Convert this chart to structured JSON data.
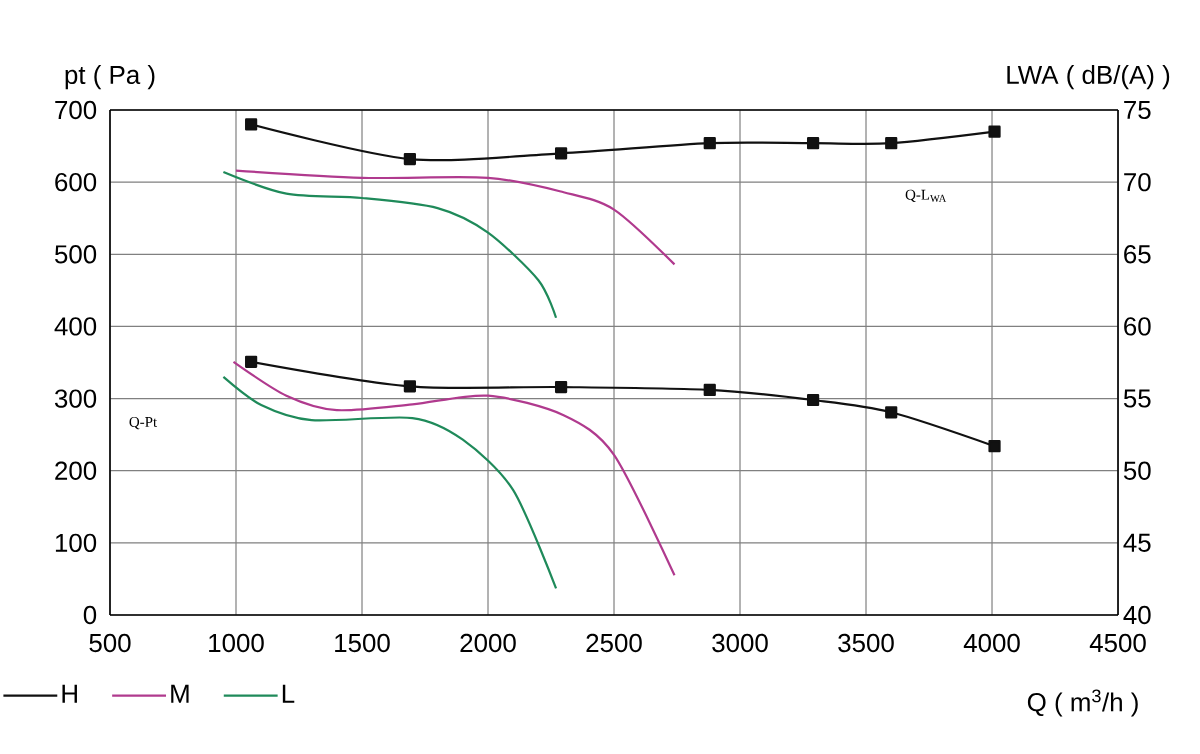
{
  "chart_data": {
    "type": "line",
    "xlabel": "Q ( m$^{3}$/h )",
    "ylabel": "pt ( Pa )",
    "y2label": "LWA ( dB/(A) )",
    "annotations": [
      "Q-Pt",
      "Q-L$_{WA}$"
    ],
    "xlim": [
      500,
      4500
    ],
    "xticks": [
      500,
      1000,
      1500,
      2000,
      2500,
      3000,
      3500,
      4000,
      4500
    ],
    "ylim": [
      0,
      700
    ],
    "yticks": [
      0,
      100,
      200,
      300,
      400,
      500,
      600,
      700
    ],
    "y2lim": [
      40,
      75
    ],
    "y2ticks": [
      40,
      45,
      50,
      55,
      60,
      65,
      70,
      75
    ],
    "grid": true,
    "legend": "bottom left",
    "line_style": "solid",
    "series": [
      {
        "name": "H",
        "color": "#111111",
        "marker": "square",
        "x": [
          1060,
          1690,
          2290,
          2880,
          3290,
          3600,
          4010
        ],
        "values": [
          351,
          317,
          316,
          312,
          298,
          281,
          234
        ]
      },
      {
        "name": "M",
        "color": "#b03a8e",
        "marker": "none",
        "x": [
          990,
          1200,
          1400,
          1700,
          2000,
          2300,
          2500,
          2740
        ],
        "values": [
          351,
          304,
          284,
          292,
          304,
          277,
          222,
          55
        ]
      },
      {
        "name": "L",
        "color": "#1f8a5a",
        "marker": "none",
        "x": [
          950,
          1100,
          1300,
          1700,
          1900,
          2100,
          2270
        ],
        "values": [
          330,
          291,
          270,
          273,
          243,
          173,
          37
        ]
      },
      {
        "color": "#111111",
        "marker": "square",
        "axis": "y2",
        "x": [
          1060,
          1690,
          2290,
          2880,
          3290,
          3600,
          4010
        ],
        "values": [
          74.0,
          71.6,
          72.0,
          72.7,
          72.7,
          72.7,
          73.5
        ]
      },
      {
        "color": "#b03a8e",
        "marker": "none",
        "axis": "y2",
        "x": [
          1000,
          1500,
          2000,
          2300,
          2500,
          2740
        ],
        "values": [
          70.8,
          70.3,
          70.3,
          69.3,
          68.1,
          64.3
        ]
      },
      {
        "color": "#1f8a5a",
        "marker": "none",
        "axis": "y2",
        "x": [
          950,
          1200,
          1500,
          1800,
          2000,
          2200,
          2270
        ],
        "values": [
          70.7,
          69.2,
          68.9,
          68.2,
          66.5,
          63.2,
          60.6
        ]
      }
    ]
  }
}
